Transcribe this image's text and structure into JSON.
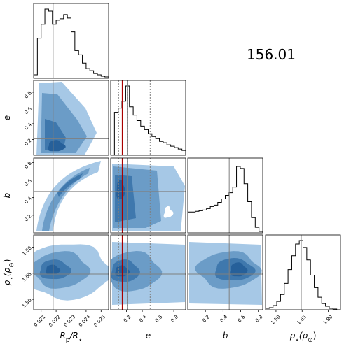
{
  "annotation": "156.01",
  "chart_data": {
    "type": "corner",
    "parameters": [
      {
        "key": "rp",
        "label_main": "R",
        "label_sub": "p",
        "label_rest": "/R",
        "label_sub2": "⋆",
        "range": [
          0.0205,
          0.0255
        ],
        "ticks": [
          0.021,
          0.022,
          0.023,
          0.024,
          0.025
        ],
        "tick_labels": [
          "0.021",
          "0.022",
          "0.023",
          "0.024",
          "0.025"
        ],
        "truth": 0.0218
      },
      {
        "key": "e",
        "label_main": "e",
        "range": [
          0.0,
          0.95
        ],
        "ticks": [
          0.2,
          0.4,
          0.6,
          0.8
        ],
        "tick_labels": [
          "0.2",
          "0.4",
          "0.6",
          "0.8"
        ],
        "truth": 0.21
      },
      {
        "key": "b",
        "label_main": "b",
        "range": [
          0.0,
          0.85
        ],
        "ticks": [
          0.2,
          0.4,
          0.6,
          0.8
        ],
        "tick_labels": [
          "0.2",
          "0.4",
          "0.6",
          "0.8"
        ],
        "truth": 0.47
      },
      {
        "key": "rho",
        "label_main": "ρ",
        "label_sub": "⋆",
        "label_rest": "(ρ",
        "label_sub2": "⊙",
        "label_end": ")",
        "range": [
          1.44,
          1.87
        ],
        "ticks": [
          1.5,
          1.65,
          1.8
        ],
        "tick_labels": [
          "1.50",
          "1.65",
          "1.80"
        ],
        "truth": 1.645
      }
    ],
    "histograms": {
      "rp": {
        "bin_start": 0.0205,
        "bin_width": 0.00025,
        "counts": [
          0.05,
          0.58,
          0.78,
          1.0,
          0.97,
          0.78,
          0.84,
          0.86,
          0.92,
          0.87,
          0.67,
          0.4,
          0.34,
          0.22,
          0.14,
          0.11,
          0.07,
          0.05,
          0.03,
          0.02
        ]
      },
      "e": {
        "bin_start": 0.0,
        "bin_width": 0.0475,
        "counts": [
          0.0,
          0.62,
          0.68,
          0.78,
          1.0,
          0.7,
          0.58,
          0.5,
          0.42,
          0.37,
          0.31,
          0.27,
          0.24,
          0.2,
          0.18,
          0.15,
          0.13,
          0.11,
          0.09,
          0.07
        ]
      },
      "b": {
        "bin_start": 0.0,
        "bin_width": 0.0425,
        "counts": [
          0.3,
          0.3,
          0.31,
          0.32,
          0.33,
          0.35,
          0.38,
          0.4,
          0.44,
          0.49,
          0.54,
          0.58,
          0.66,
          0.96,
          0.93,
          0.71,
          0.45,
          0.22,
          0.08,
          0.02
        ]
      },
      "rho": {
        "bin_start": 1.44,
        "bin_width": 0.0215,
        "counts": [
          0.02,
          0.03,
          0.06,
          0.12,
          0.22,
          0.38,
          0.58,
          0.78,
          0.95,
          1.0,
          0.9,
          0.72,
          0.5,
          0.32,
          0.18,
          0.09,
          0.05,
          0.02,
          0.01,
          0.0
        ]
      }
    },
    "e_quantiles": [
      0.1,
      0.21,
      0.5
    ],
    "e_reference": 0.15,
    "colors": {
      "fill": "#a6c8e6",
      "mid": "#6b9cc7",
      "dark": "#3f78ad",
      "darkest": "#26609a",
      "line": "#7f7f7f",
      "hist": "#000000",
      "quantile": "#7f7f7f",
      "reference": "#aa0000"
    }
  }
}
